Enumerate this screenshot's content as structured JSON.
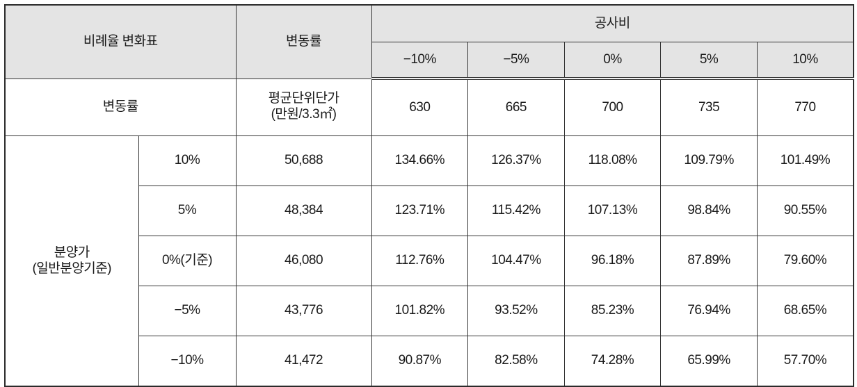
{
  "table": {
    "title": "비례율 변화표",
    "change_rate_header": "변동률",
    "cost_group_header": "공사비",
    "cost_changes": [
      "−10%",
      "−5%",
      "0%",
      "5%",
      "10%"
    ],
    "unit_row": {
      "label": "변동률",
      "price_label_line1": "평균단위단가",
      "price_label_line2": "(만원/3.3㎡)",
      "cost_values": [
        "630",
        "665",
        "700",
        "735",
        "770"
      ]
    },
    "sale_price_group": {
      "label_line1": "분양가",
      "label_line2": "(일반분양기준)"
    },
    "rows": [
      {
        "change": "10%",
        "price": "50,688",
        "ratios": [
          "134.66%",
          "126.37%",
          "118.08%",
          "109.79%",
          "101.49%"
        ]
      },
      {
        "change": "5%",
        "price": "48,384",
        "ratios": [
          "123.71%",
          "115.42%",
          "107.13%",
          "98.84%",
          "90.55%"
        ]
      },
      {
        "change": "0%(기준)",
        "price": "46,080",
        "ratios": [
          "112.76%",
          "104.47%",
          "96.18%",
          "87.89%",
          "79.60%"
        ]
      },
      {
        "change": "−5%",
        "price": "43,776",
        "ratios": [
          "101.82%",
          "93.52%",
          "85.23%",
          "76.94%",
          "68.65%"
        ]
      },
      {
        "change": "−10%",
        "price": "41,472",
        "ratios": [
          "90.87%",
          "82.58%",
          "74.28%",
          "65.99%",
          "57.70%"
        ]
      }
    ]
  },
  "colors": {
    "header_bg": "#e4e4e4",
    "border": "#333333",
    "text": "#1a1a1a"
  }
}
